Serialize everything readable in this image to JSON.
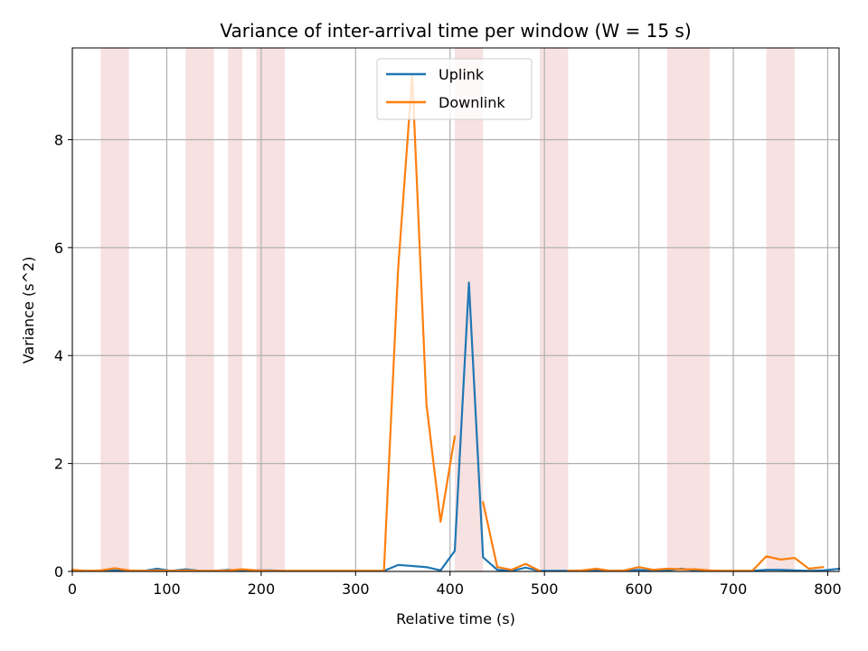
{
  "chart_data": {
    "type": "line",
    "title": "Variance of inter-arrival time per window (W = 15 s)",
    "xlabel": "Relative time (s)",
    "ylabel": "Variance (s^2)",
    "xlim": [
      0,
      812
    ],
    "ylim": [
      0,
      9.7
    ],
    "xticks": [
      0,
      100,
      200,
      300,
      400,
      500,
      600,
      700,
      800
    ],
    "yticks": [
      0,
      2,
      4,
      6,
      8
    ],
    "grid": true,
    "legend_position": "top-center",
    "shaded_intervals": [
      [
        30,
        60
      ],
      [
        120,
        150
      ],
      [
        165,
        180
      ],
      [
        195,
        225
      ],
      [
        405,
        435
      ],
      [
        495,
        525
      ],
      [
        630,
        675
      ],
      [
        735,
        765
      ]
    ],
    "shade_color": "#f8e1e1",
    "series": [
      {
        "name": "Uplink",
        "color": "#1f77b4",
        "segments": [
          {
            "x": [
              0,
              15,
              30,
              45,
              60,
              75,
              90,
              105,
              120,
              135,
              150,
              165,
              180,
              195,
              210,
              225,
              240,
              255,
              270,
              285,
              300,
              315,
              330,
              345,
              360,
              375,
              390,
              405,
              420,
              435,
              450,
              465,
              480,
              495,
              510,
              525,
              540,
              555,
              570,
              585,
              600,
              615,
              630,
              645,
              660,
              675,
              690,
              705,
              720,
              735,
              750,
              765,
              780,
              795,
              812
            ],
            "y": [
              0.02,
              0.01,
              0.01,
              0.02,
              0.01,
              0.01,
              0.05,
              0.01,
              0.04,
              0.01,
              0.01,
              0.03,
              0.01,
              0.02,
              0.02,
              0.01,
              0.01,
              0.01,
              0.01,
              0.01,
              0.01,
              0.01,
              0.01,
              0.12,
              0.1,
              0.08,
              0.02,
              0.38,
              5.35,
              0.26,
              0.03,
              0.01,
              0.07,
              0.01,
              0.01,
              0.01,
              0.01,
              0.02,
              0.01,
              0.01,
              0.03,
              0.01,
              0.02,
              0.05,
              0.02,
              0.01,
              0.01,
              0.01,
              0.01,
              0.03,
              0.03,
              0.02,
              0.01,
              0.02,
              0.05
            ]
          }
        ]
      },
      {
        "name": "Downlink",
        "color": "#ff7f0e",
        "segments": [
          {
            "x": [
              0,
              15,
              30,
              45,
              60,
              75,
              90,
              105,
              120,
              135,
              150,
              165,
              180,
              195,
              210,
              225,
              240,
              255,
              270,
              285,
              300,
              315,
              330,
              345,
              360,
              375,
              390,
              405
            ],
            "y": [
              0.03,
              0.01,
              0.02,
              0.06,
              0.02,
              0.01,
              0.02,
              0.01,
              0.02,
              0.01,
              0.01,
              0.02,
              0.04,
              0.02,
              0.01,
              0.01,
              0.01,
              0.01,
              0.01,
              0.01,
              0.01,
              0.01,
              0.01,
              5.6,
              9.2,
              3.1,
              0.92,
              2.5
            ]
          },
          {
            "x": [
              435,
              450,
              465,
              480,
              495
            ],
            "y": [
              1.28,
              0.08,
              0.03,
              0.14,
              0.01
            ]
          },
          {
            "x": [
              525,
              540,
              555,
              570,
              585,
              600,
              615,
              630,
              645,
              660,
              675,
              690,
              705,
              720,
              735,
              750,
              765,
              780,
              795
            ],
            "y": [
              0.01,
              0.02,
              0.05,
              0.01,
              0.02,
              0.08,
              0.03,
              0.05,
              0.04,
              0.04,
              0.02,
              0.01,
              0.01,
              0.01,
              0.28,
              0.22,
              0.25,
              0.05,
              0.08
            ]
          }
        ]
      }
    ]
  }
}
